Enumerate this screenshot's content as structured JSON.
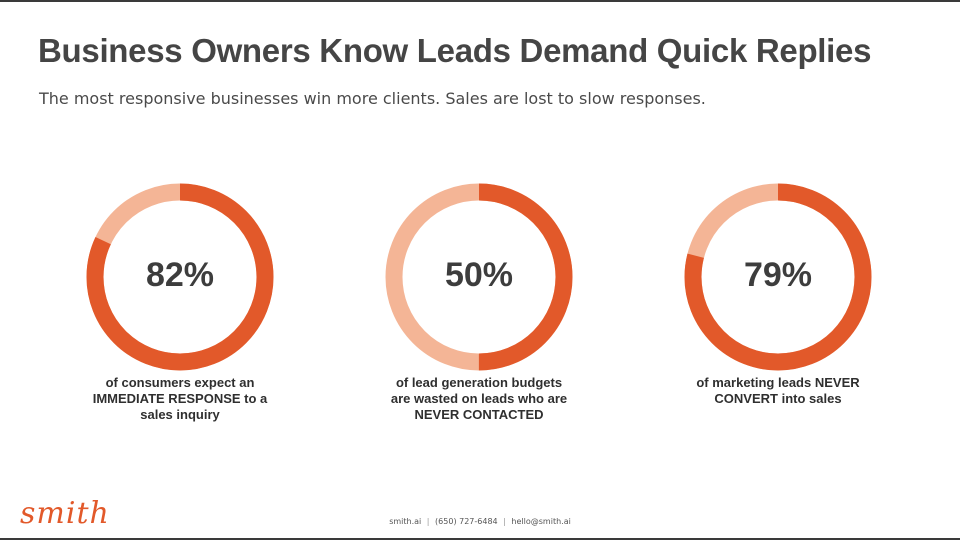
{
  "slide": {
    "title": "Business Owners Know Leads Demand Quick Replies",
    "subtitle": "The most responsive businesses win more clients. Sales are lost to slow responses."
  },
  "stats": [
    {
      "value_label": "82%",
      "percent": 82,
      "caption_lines": [
        "of consumers expect an",
        "IMMEDIATE RESPONSE to a",
        "sales inquiry"
      ]
    },
    {
      "value_label": "50%",
      "percent": 50,
      "caption_lines": [
        "of lead generation budgets",
        "are wasted on leads who are",
        "NEVER CONTACTED"
      ]
    },
    {
      "value_label": "79%",
      "percent": 79,
      "caption_lines": [
        "of marketing leads NEVER",
        "CONVERT into sales"
      ]
    }
  ],
  "colors": {
    "ring_fill": "#e2592a",
    "ring_track": "#f4b596",
    "brand": "#e2592a"
  },
  "logo": {
    "text": "smith"
  },
  "footer": {
    "site": "smith.ai",
    "separator": "|",
    "phone": "(650) 727-6484",
    "email": "hello@smith.ai"
  }
}
